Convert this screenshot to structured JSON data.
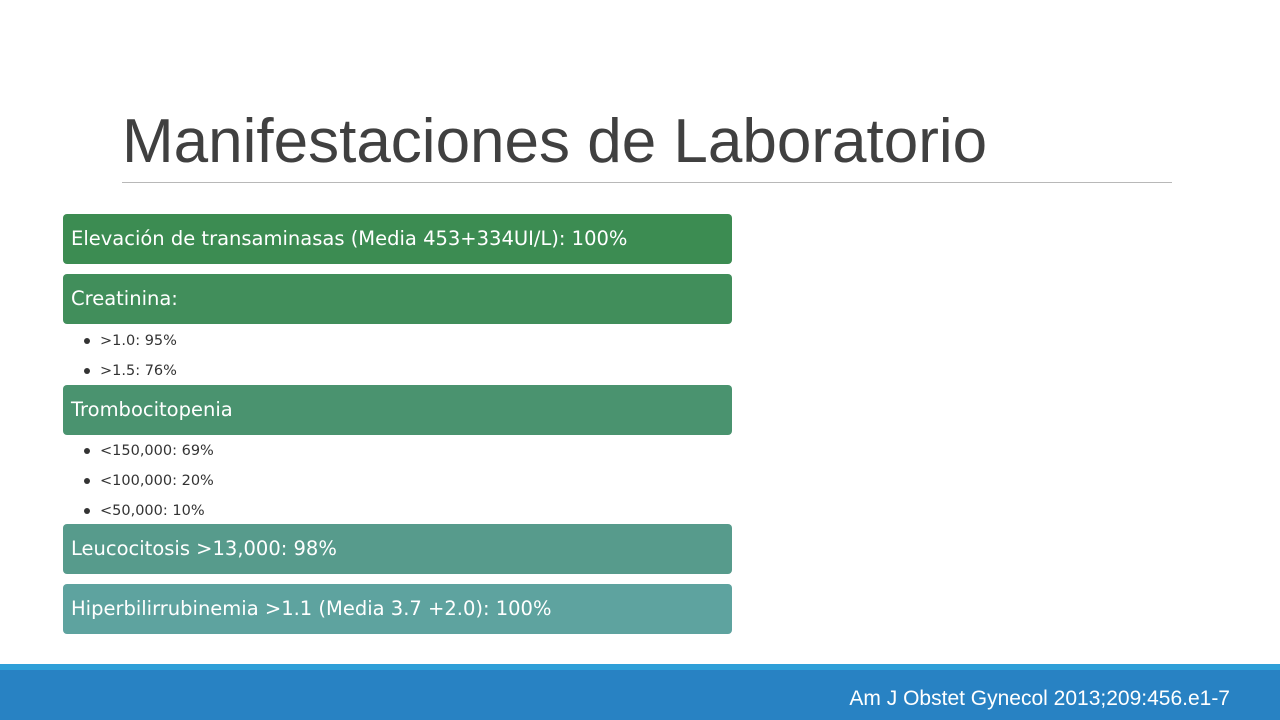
{
  "slide": {
    "title": "Manifestaciones de Laboratorio",
    "items": [
      {
        "label": "Elevación de transaminasas (Media 453+334UI/L): 100%"
      },
      {
        "label": "Creatinina:",
        "bullets": [
          ">1.0: 95%",
          ">1.5: 76%"
        ]
      },
      {
        "label": "Trombocitopenia",
        "bullets": [
          "<150,000: 69%",
          "<100,000: 20%",
          "<50,000: 10%"
        ]
      },
      {
        "label": "Leucocitosis >13,000: 98%"
      },
      {
        "label": "Hiperbilirrubinemia >1.1 (Media 3.7 +2.0): 100%"
      }
    ]
  },
  "footer": {
    "citation": "Am J Obstet Gynecol 2013;209:456.e1-7"
  },
  "colors": {
    "title_text": "#404040",
    "bar_1": "#3c8c52",
    "bar_2": "#418e5b",
    "bar_3": "#4a936f",
    "bar_4": "#579b8c",
    "bar_5": "#5ea39f",
    "footer_band": "#2882c3",
    "footer_stripe": "#2f9fd8"
  }
}
